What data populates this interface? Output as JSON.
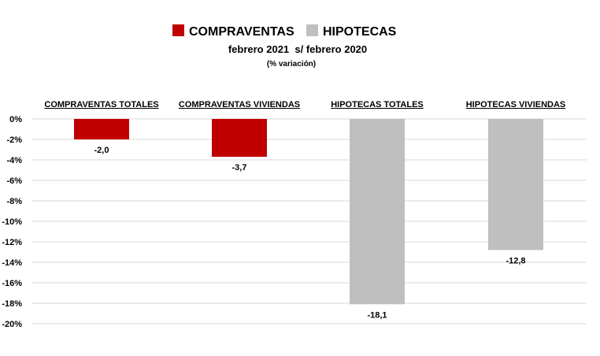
{
  "chart_data": {
    "type": "bar",
    "title": "febrero 2021  s/ febrero 2020",
    "subtitle": "(% variación)",
    "xlabel": "",
    "ylabel": "",
    "ylim": [
      -20,
      0
    ],
    "y_ticks": [
      0,
      -2,
      -4,
      -6,
      -8,
      -10,
      -12,
      -14,
      -16,
      -18,
      -20
    ],
    "y_tick_labels": [
      "0%",
      "-2%",
      "-4%",
      "-6%",
      "-8%",
      "-10%",
      "-12%",
      "-14%",
      "-16%",
      "-18%",
      "-20%"
    ],
    "grid": true,
    "legend_position": "top-center",
    "legend": [
      {
        "name": "COMPRAVENTAS",
        "color": "#c00000"
      },
      {
        "name": "HIPOTECAS",
        "color": "#bfbfbf"
      }
    ],
    "categories": [
      "COMPRAVENTAS TOTALES",
      "COMPRAVENTAS VIVIENDAS",
      "HIPOTECAS TOTALES",
      "HIPOTECAS VIVIENDAS"
    ],
    "values": [
      -2.0,
      -3.7,
      -18.1,
      -12.8
    ],
    "value_labels": [
      "-2,0",
      "-3,7",
      "-18,1",
      "-12,8"
    ],
    "bar_colors": [
      "#c00000",
      "#c00000",
      "#bfbfbf",
      "#bfbfbf"
    ]
  }
}
